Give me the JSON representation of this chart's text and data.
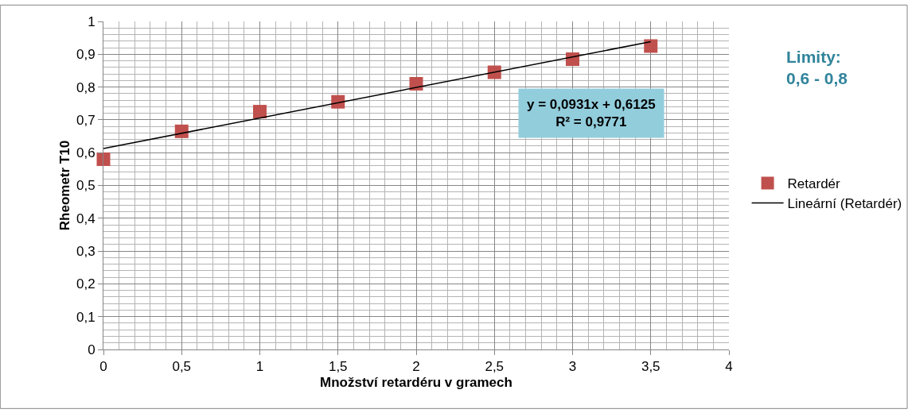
{
  "chart_data": {
    "type": "scatter",
    "xlabel": "Množství retardéru v gramech",
    "ylabel": "Rheometr T10",
    "x": [
      0,
      0.5,
      1,
      1.5,
      2,
      2.5,
      3,
      3.5
    ],
    "series": [
      {
        "name": "Retardér",
        "color": "#c0504d",
        "marker": "square",
        "values": [
          0.58,
          0.665,
          0.725,
          0.755,
          0.81,
          0.845,
          0.885,
          0.925
        ]
      },
      {
        "name": "Lineární (Retardér)",
        "type": "line",
        "color": "#000000",
        "x": [
          0,
          3.5
        ],
        "values": [
          0.6125,
          0.93835
        ]
      }
    ],
    "xlim": [
      0,
      4
    ],
    "ylim": [
      0,
      1
    ],
    "xticks": [
      0,
      {
        "value": 0.5,
        "label": "0,5"
      },
      1,
      {
        "value": 1.5,
        "label": "1,5"
      },
      2,
      {
        "value": 2.5,
        "label": "2,5"
      },
      3,
      {
        "value": 3.5,
        "label": "3,5"
      },
      4
    ],
    "yticks": [
      0,
      {
        "value": 0.1,
        "label": "0,1"
      },
      {
        "value": 0.2,
        "label": "0,2"
      },
      {
        "value": 0.3,
        "label": "0,3"
      },
      {
        "value": 0.4,
        "label": "0,4"
      },
      {
        "value": 0.5,
        "label": "0,5"
      },
      {
        "value": 0.6,
        "label": "0,6"
      },
      {
        "value": 0.7,
        "label": "0,7"
      },
      {
        "value": 0.8,
        "label": "0,8"
      },
      {
        "value": 0.9,
        "label": "0,9"
      },
      1
    ],
    "grid": true,
    "legend": "right",
    "annotations": [
      "y = 0,0931x + 0,6125\nR² = 0,9771",
      "Limity:\n0,6 - 0,8"
    ]
  }
}
